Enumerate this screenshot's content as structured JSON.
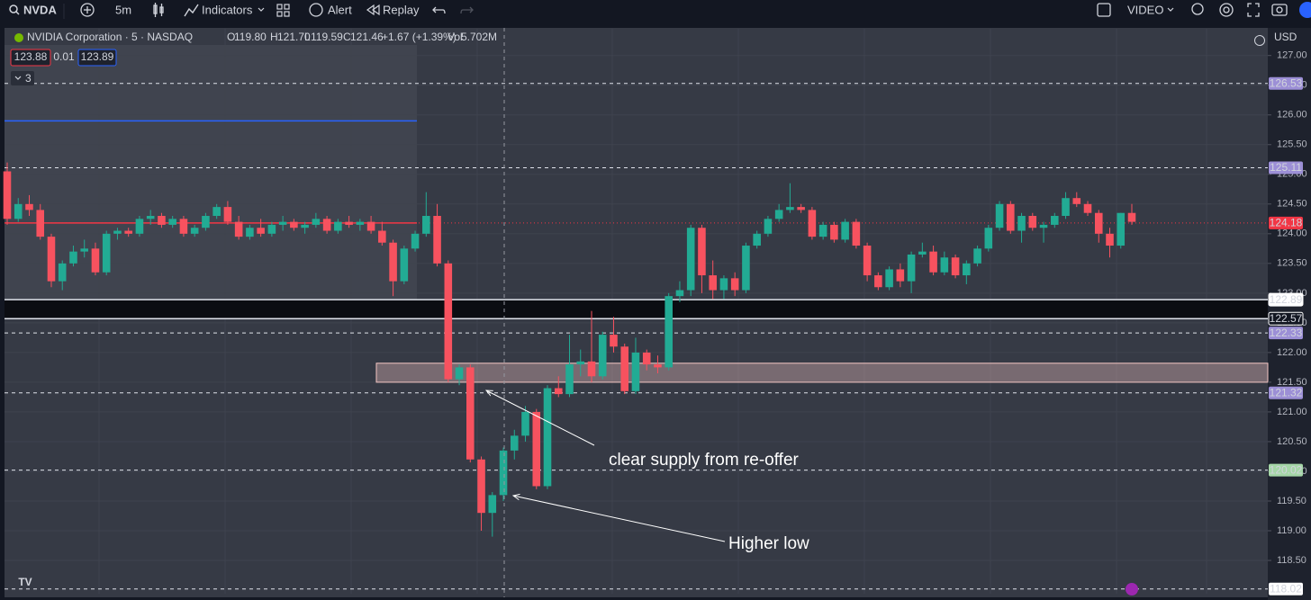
{
  "toolbar": {
    "symbol": "NVDA",
    "interval": "5m",
    "indicators": "Indicators",
    "alert": "Alert",
    "replay": "Replay",
    "layout": "VIDEO"
  },
  "chart_data": {
    "type": "candlestick",
    "title": "NVIDIA Corporation · 5 · NASDAQ",
    "legend": [
      {
        "key": "O",
        "value": "119.80"
      },
      {
        "key": "H",
        "value": "121.70"
      },
      {
        "key": "L",
        "value": "119.59"
      },
      {
        "key": "C",
        "value": "121.46"
      }
    ],
    "change": "+1.67 (+1.39%)",
    "volume": {
      "key": "Vol",
      "value": "5.702M"
    },
    "quote": {
      "bid": "123.88",
      "spread": "0.01",
      "ask": "123.89"
    },
    "indicator_count": "3",
    "currency": "USD",
    "up_color": "#22ab94",
    "down_color": "#f7525f",
    "grid": true,
    "ylim": [
      117.94,
      127.45
    ],
    "yticks": [
      {
        "value": 127,
        "label": "127.00"
      },
      {
        "value": 126.5,
        "label": "126.50"
      },
      {
        "value": 126,
        "label": "126.00"
      },
      {
        "value": 125.5,
        "label": "125.50"
      },
      {
        "value": 125,
        "label": "125.00"
      },
      {
        "value": 124.5,
        "label": "124.50"
      },
      {
        "value": 124,
        "label": "124.00"
      },
      {
        "value": 123.5,
        "label": "123.50"
      },
      {
        "value": 123,
        "label": "123.00"
      },
      {
        "value": 122.5,
        "label": "122.50"
      },
      {
        "value": 122,
        "label": "122.00"
      },
      {
        "value": 121.5,
        "label": "121.50"
      },
      {
        "value": 121,
        "label": "121.00"
      },
      {
        "value": 120.5,
        "label": "120.50"
      },
      {
        "value": 120,
        "label": "120.00"
      },
      {
        "value": 119.5,
        "label": "119.50"
      },
      {
        "value": 119,
        "label": "119.00"
      },
      {
        "value": 118.5,
        "label": "118.50"
      }
    ],
    "price_labels": [
      {
        "value": 126.53,
        "bg": "#9c8fd6",
        "fg": "#131722",
        "style": "dashed"
      },
      {
        "value": 125.11,
        "bg": "#9c8fd6",
        "fg": "#131722",
        "style": "dashed"
      },
      {
        "value": 124.18,
        "bg": "#f23645",
        "fg": "#ffffff",
        "style": "dotted"
      },
      {
        "value": 122.89,
        "bg": "#ffffff",
        "fg": "#131722",
        "style": "solid"
      },
      {
        "value": 122.57,
        "bg": "#131722",
        "fg": "#ffffff",
        "style": "solid"
      },
      {
        "value": 122.33,
        "bg": "#9c8fd6",
        "fg": "#131722",
        "style": "dashed"
      },
      {
        "value": 121.32,
        "bg": "#9c8fd6",
        "fg": "#131722",
        "style": "dashed"
      },
      {
        "value": 120.02,
        "bg": "#a5d6a7",
        "fg": "#131722",
        "style": "dashed"
      },
      {
        "value": 118.02,
        "bg": "#ffffff",
        "fg": "#131722",
        "style": "dashed"
      }
    ],
    "lines": [
      {
        "value": 125.9,
        "color": "#2962ff"
      }
    ],
    "zone": {
      "low": 121.5,
      "high": 121.82,
      "color": "#f4c7c3"
    },
    "annotations": [
      {
        "text": "clear supply from re-offer"
      },
      {
        "text": "Higher low"
      }
    ],
    "candles": [
      {
        "open": 125.05,
        "high": 125.2,
        "low": 124.15,
        "close": 124.25
      },
      {
        "open": 124.25,
        "high": 124.6,
        "low": 124.2,
        "close": 124.5
      },
      {
        "open": 124.5,
        "high": 124.65,
        "low": 124.3,
        "close": 124.4
      },
      {
        "open": 124.4,
        "high": 124.5,
        "low": 123.9,
        "close": 123.95
      },
      {
        "open": 123.95,
        "high": 124.0,
        "low": 123.1,
        "close": 123.2
      },
      {
        "open": 123.2,
        "high": 123.55,
        "low": 123.05,
        "close": 123.5
      },
      {
        "open": 123.5,
        "high": 123.8,
        "low": 123.45,
        "close": 123.7
      },
      {
        "open": 123.7,
        "high": 123.9,
        "low": 123.6,
        "close": 123.75
      },
      {
        "open": 123.75,
        "high": 123.85,
        "low": 123.3,
        "close": 123.35
      },
      {
        "open": 123.35,
        "high": 124.05,
        "low": 123.3,
        "close": 124.0
      },
      {
        "open": 124.0,
        "high": 124.1,
        "low": 123.9,
        "close": 124.05
      },
      {
        "open": 124.05,
        "high": 124.1,
        "low": 123.95,
        "close": 124.0
      },
      {
        "open": 124.0,
        "high": 124.3,
        "low": 123.95,
        "close": 124.25
      },
      {
        "open": 124.25,
        "high": 124.4,
        "low": 124.15,
        "close": 124.3
      },
      {
        "open": 124.3,
        "high": 124.35,
        "low": 124.1,
        "close": 124.15
      },
      {
        "open": 124.15,
        "high": 124.3,
        "low": 124.1,
        "close": 124.25
      },
      {
        "open": 124.25,
        "high": 124.3,
        "low": 123.95,
        "close": 124.0
      },
      {
        "open": 124.0,
        "high": 124.15,
        "low": 123.95,
        "close": 124.1
      },
      {
        "open": 124.1,
        "high": 124.35,
        "low": 124.05,
        "close": 124.3
      },
      {
        "open": 124.3,
        "high": 124.5,
        "low": 124.25,
        "close": 124.45
      },
      {
        "open": 124.45,
        "high": 124.55,
        "low": 124.15,
        "close": 124.2
      },
      {
        "open": 124.2,
        "high": 124.3,
        "low": 123.9,
        "close": 123.95
      },
      {
        "open": 123.95,
        "high": 124.15,
        "low": 123.9,
        "close": 124.1
      },
      {
        "open": 124.1,
        "high": 124.25,
        "low": 123.95,
        "close": 124.0
      },
      {
        "open": 124.0,
        "high": 124.2,
        "low": 123.95,
        "close": 124.15
      },
      {
        "open": 124.15,
        "high": 124.3,
        "low": 124.05,
        "close": 124.2
      },
      {
        "open": 124.2,
        "high": 124.25,
        "low": 124.05,
        "close": 124.1
      },
      {
        "open": 124.1,
        "high": 124.2,
        "low": 124.0,
        "close": 124.15
      },
      {
        "open": 124.15,
        "high": 124.35,
        "low": 124.1,
        "close": 124.25
      },
      {
        "open": 124.25,
        "high": 124.3,
        "low": 124.0,
        "close": 124.05
      },
      {
        "open": 124.05,
        "high": 124.25,
        "low": 124.0,
        "close": 124.2
      },
      {
        "open": 124.2,
        "high": 124.3,
        "low": 124.1,
        "close": 124.15
      },
      {
        "open": 124.15,
        "high": 124.25,
        "low": 124.05,
        "close": 124.2
      },
      {
        "open": 124.2,
        "high": 124.3,
        "low": 124.0,
        "close": 124.05
      },
      {
        "open": 124.05,
        "high": 124.2,
        "low": 123.8,
        "close": 123.85
      },
      {
        "open": 123.85,
        "high": 123.9,
        "low": 122.95,
        "close": 123.2
      },
      {
        "open": 123.2,
        "high": 123.8,
        "low": 123.15,
        "close": 123.75
      },
      {
        "open": 123.75,
        "high": 124.05,
        "low": 123.7,
        "close": 124.0
      },
      {
        "open": 124.0,
        "high": 124.7,
        "low": 123.95,
        "close": 124.3
      },
      {
        "open": 124.3,
        "high": 124.5,
        "low": 123.45,
        "close": 123.5
      },
      {
        "open": 123.5,
        "high": 123.55,
        "low": 121.5,
        "close": 121.55
      },
      {
        "open": 121.55,
        "high": 121.8,
        "low": 121.45,
        "close": 121.75
      },
      {
        "open": 121.75,
        "high": 121.8,
        "low": 120.15,
        "close": 120.2
      },
      {
        "open": 120.2,
        "high": 120.25,
        "low": 119.0,
        "close": 119.3
      },
      {
        "open": 119.3,
        "high": 119.65,
        "low": 118.9,
        "close": 119.6
      },
      {
        "open": 119.6,
        "high": 120.4,
        "low": 119.5,
        "close": 120.35
      },
      {
        "open": 120.35,
        "high": 120.7,
        "low": 120.2,
        "close": 120.6
      },
      {
        "open": 120.6,
        "high": 121.1,
        "low": 120.5,
        "close": 121.0
      },
      {
        "open": 121.0,
        "high": 121.05,
        "low": 119.7,
        "close": 119.75
      },
      {
        "open": 119.75,
        "high": 121.45,
        "low": 119.7,
        "close": 121.4
      },
      {
        "open": 121.4,
        "high": 121.6,
        "low": 121.25,
        "close": 121.3
      },
      {
        "open": 121.3,
        "high": 122.3,
        "low": 121.25,
        "close": 121.8
      },
      {
        "open": 121.8,
        "high": 122.05,
        "low": 121.6,
        "close": 121.85
      },
      {
        "open": 121.85,
        "high": 122.7,
        "low": 121.5,
        "close": 121.6
      },
      {
        "open": 121.6,
        "high": 122.35,
        "low": 121.55,
        "close": 122.3
      },
      {
        "open": 122.3,
        "high": 122.6,
        "low": 122.0,
        "close": 122.1
      },
      {
        "open": 122.1,
        "high": 122.15,
        "low": 121.3,
        "close": 121.35
      },
      {
        "open": 121.35,
        "high": 122.25,
        "low": 121.3,
        "close": 122.0
      },
      {
        "open": 122.0,
        "high": 122.05,
        "low": 121.7,
        "close": 121.8
      },
      {
        "open": 121.8,
        "high": 121.95,
        "low": 121.65,
        "close": 121.75
      },
      {
        "open": 121.75,
        "high": 123.0,
        "low": 121.7,
        "close": 122.95
      },
      {
        "open": 122.95,
        "high": 123.2,
        "low": 122.85,
        "close": 123.05
      },
      {
        "open": 123.05,
        "high": 124.15,
        "low": 122.95,
        "close": 124.1
      },
      {
        "open": 124.1,
        "high": 124.15,
        "low": 123.0,
        "close": 123.3
      },
      {
        "open": 123.3,
        "high": 123.55,
        "low": 122.9,
        "close": 123.05
      },
      {
        "open": 123.05,
        "high": 123.3,
        "low": 122.9,
        "close": 123.25
      },
      {
        "open": 123.25,
        "high": 123.35,
        "low": 122.95,
        "close": 123.05
      },
      {
        "open": 123.05,
        "high": 123.85,
        "low": 123.0,
        "close": 123.8
      },
      {
        "open": 123.8,
        "high": 124.05,
        "low": 123.75,
        "close": 124.0
      },
      {
        "open": 124.0,
        "high": 124.3,
        "low": 123.95,
        "close": 124.25
      },
      {
        "open": 124.25,
        "high": 124.5,
        "low": 124.2,
        "close": 124.4
      },
      {
        "open": 124.4,
        "high": 124.85,
        "low": 124.35,
        "close": 124.45
      },
      {
        "open": 124.45,
        "high": 124.5,
        "low": 124.35,
        "close": 124.4
      },
      {
        "open": 124.4,
        "high": 124.45,
        "low": 123.9,
        "close": 123.95
      },
      {
        "open": 123.95,
        "high": 124.2,
        "low": 123.9,
        "close": 124.15
      },
      {
        "open": 124.15,
        "high": 124.2,
        "low": 123.85,
        "close": 123.9
      },
      {
        "open": 123.9,
        "high": 124.25,
        "low": 123.85,
        "close": 124.2
      },
      {
        "open": 124.2,
        "high": 124.25,
        "low": 123.75,
        "close": 123.8
      },
      {
        "open": 123.8,
        "high": 123.85,
        "low": 123.2,
        "close": 123.3
      },
      {
        "open": 123.3,
        "high": 123.35,
        "low": 123.05,
        "close": 123.1
      },
      {
        "open": 123.1,
        "high": 123.45,
        "low": 123.05,
        "close": 123.4
      },
      {
        "open": 123.4,
        "high": 123.5,
        "low": 123.1,
        "close": 123.2
      },
      {
        "open": 123.2,
        "high": 123.7,
        "low": 123.0,
        "close": 123.65
      },
      {
        "open": 123.65,
        "high": 123.85,
        "low": 123.6,
        "close": 123.7
      },
      {
        "open": 123.7,
        "high": 123.8,
        "low": 123.3,
        "close": 123.35
      },
      {
        "open": 123.35,
        "high": 123.7,
        "low": 123.3,
        "close": 123.6
      },
      {
        "open": 123.6,
        "high": 123.65,
        "low": 123.25,
        "close": 123.3
      },
      {
        "open": 123.3,
        "high": 123.55,
        "low": 123.15,
        "close": 123.5
      },
      {
        "open": 123.5,
        "high": 123.8,
        "low": 123.45,
        "close": 123.75
      },
      {
        "open": 123.75,
        "high": 124.15,
        "low": 123.7,
        "close": 124.1
      },
      {
        "open": 124.1,
        "high": 124.55,
        "low": 124.05,
        "close": 124.5
      },
      {
        "open": 124.5,
        "high": 124.55,
        "low": 124.0,
        "close": 124.05
      },
      {
        "open": 124.05,
        "high": 124.35,
        "low": 123.85,
        "close": 124.3
      },
      {
        "open": 124.3,
        "high": 124.35,
        "low": 124.05,
        "close": 124.1
      },
      {
        "open": 124.1,
        "high": 124.2,
        "low": 123.85,
        "close": 124.15
      },
      {
        "open": 124.15,
        "high": 124.35,
        "low": 124.1,
        "close": 124.3
      },
      {
        "open": 124.3,
        "high": 124.7,
        "low": 124.25,
        "close": 124.6
      },
      {
        "open": 124.6,
        "high": 124.7,
        "low": 124.45,
        "close": 124.5
      },
      {
        "open": 124.5,
        "high": 124.55,
        "low": 124.3,
        "close": 124.35
      },
      {
        "open": 124.35,
        "high": 124.4,
        "low": 123.85,
        "close": 124.0
      },
      {
        "open": 124.0,
        "high": 124.1,
        "low": 123.6,
        "close": 123.8
      },
      {
        "open": 123.8,
        "high": 124.35,
        "low": 123.75,
        "close": 124.35
      },
      {
        "open": 124.35,
        "high": 124.5,
        "low": 124.15,
        "close": 124.2
      }
    ]
  }
}
